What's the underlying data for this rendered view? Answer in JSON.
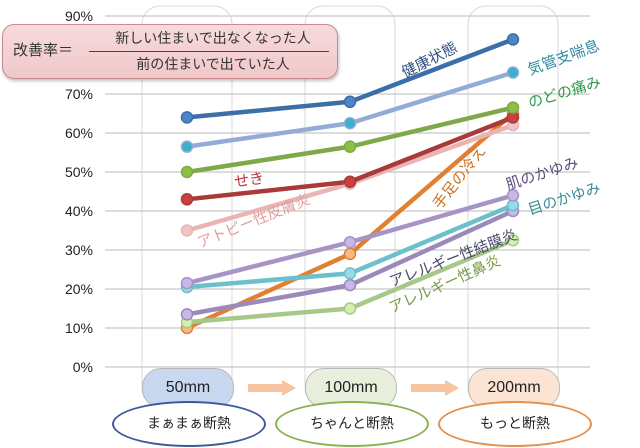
{
  "chart_data": {
    "type": "line",
    "title": "",
    "xlabel": "",
    "ylabel": "改善率",
    "ylim": [
      0,
      90
    ],
    "yticks": [
      "0%",
      "10%",
      "20%",
      "30%",
      "40%",
      "50%",
      "60%",
      "70%",
      "90%"
    ],
    "ytick_values": [
      0,
      10,
      20,
      30,
      40,
      50,
      60,
      70,
      90
    ],
    "grid": true,
    "categories": [
      "50mm",
      "100mm",
      "200mm"
    ],
    "series": [
      {
        "name": "健康状態",
        "values": [
          64,
          68,
          84
        ],
        "color": "#3c6ea8",
        "label_color": "#2f4f7f",
        "marker": "#4a86c8"
      },
      {
        "name": "気管支喘息",
        "values": [
          56.5,
          62.5,
          75.5
        ],
        "color": "#93acd6",
        "label_color": "#2e8aa0",
        "marker": "#3ab0cc"
      },
      {
        "name": "のどの痛み",
        "values": [
          50,
          56.5,
          66.5
        ],
        "color": "#7ea84a",
        "label_color": "#2e9a4a",
        "marker": "#8cc040"
      },
      {
        "name": "せき",
        "values": [
          43,
          47.5,
          64
        ],
        "color": "#a83a3a",
        "label_color": "#c0303a",
        "marker": "#c84040"
      },
      {
        "name": "アトピー性皮膚炎",
        "values": [
          35,
          47,
          62
        ],
        "color": "#ebb4b4",
        "label_color": "#e0a0a0",
        "marker": "#f4c4c4"
      },
      {
        "name": "肌のかゆみ",
        "values": [
          21.5,
          32,
          44
        ],
        "color": "#a694c6",
        "label_color": "#5a4a7a",
        "marker": "#c8b8e8"
      },
      {
        "name": "目のかゆみ",
        "values": [
          20.5,
          24,
          41.5
        ],
        "color": "#6cc0cc",
        "label_color": "#3a8a9a",
        "marker": "#9adae4"
      },
      {
        "name": "アレルギー性結膜炎",
        "values": [
          13.5,
          21,
          40
        ],
        "color": "#9a8abc",
        "label_color": "#4a4a6a",
        "marker": "#c8b8e8"
      },
      {
        "name": "アレルギー性鼻炎",
        "values": [
          11.5,
          15,
          32.5
        ],
        "color": "#a8c88a",
        "label_color": "#7a9a4a",
        "marker": "#d4f0b0"
      },
      {
        "name": "手足の冷え",
        "values": [
          10,
          29,
          65
        ],
        "color": "#e08030",
        "label_color": "#d07020",
        "marker": "#f8b888"
      }
    ]
  },
  "formula": {
    "lhs": "改善率＝",
    "numerator": "新しい住まいで出なくなった人",
    "denominator": "前の住まいで出ていた人"
  },
  "levels": [
    {
      "thickness": "50mm",
      "label": "まぁまぁ断熱",
      "box_color": "#c8d8f0",
      "ellipse_color": "#3a5a9a"
    },
    {
      "thickness": "100mm",
      "label": "ちゃんと断熱",
      "box_color": "#e8efdc",
      "ellipse_color": "#8ab050"
    },
    {
      "thickness": "200mm",
      "label": "もっと断熱",
      "box_color": "#fbe4d4",
      "ellipse_color": "#e09050"
    }
  ],
  "arrow_color": "#f6c4a0"
}
